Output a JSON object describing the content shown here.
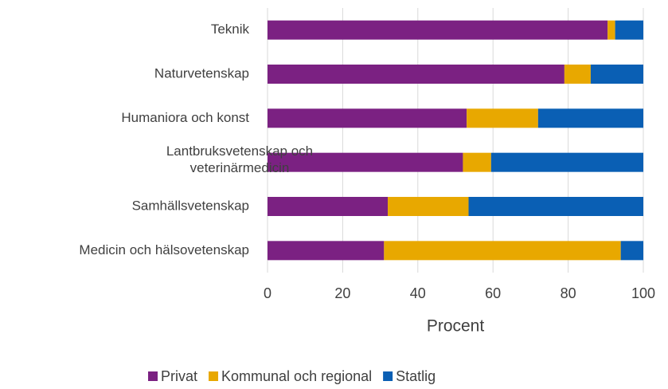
{
  "chart_data": {
    "type": "stacked_barh",
    "categories": [
      "Teknik",
      "Naturvetenskap",
      "Humaniora och konst",
      "Lantbruksvetenskap och veterinärmedicin",
      "Samhällsvetenskap",
      "Medicin och hälsovetenskap"
    ],
    "series": [
      {
        "name": "Privat",
        "color": "#7b2182",
        "values": [
          90.5,
          79,
          53,
          52,
          32,
          31
        ]
      },
      {
        "name": "Kommunal och regional",
        "color": "#e8a800",
        "values": [
          2,
          7,
          19,
          7.5,
          21.5,
          63
        ]
      },
      {
        "name": "Statlig",
        "color": "#0a5fb4",
        "values": [
          7.5,
          14,
          28,
          40.5,
          46.5,
          6
        ]
      }
    ],
    "xlabel": "Procent",
    "xlim": [
      0,
      100
    ],
    "xticks": [
      0,
      20,
      40,
      60,
      80,
      100
    ],
    "grid": true,
    "legend": "bottom"
  }
}
